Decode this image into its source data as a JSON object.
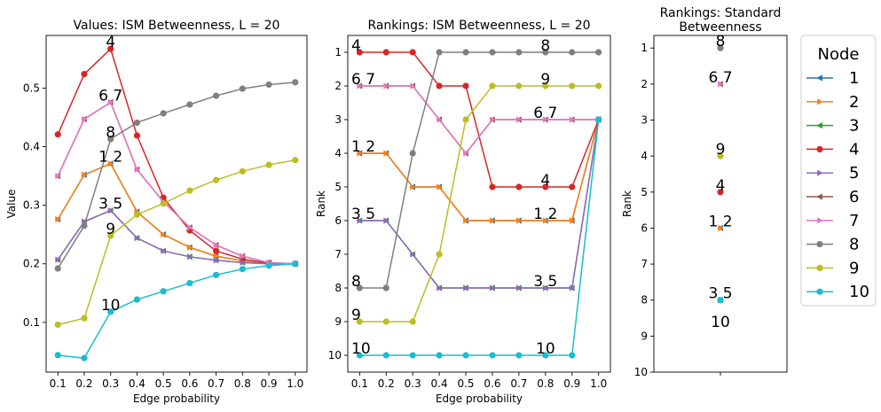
{
  "chart_data": [
    {
      "type": "line",
      "title": "Values: ISM Betweenness, L = 20",
      "xlabel": "Edge probability",
      "ylabel": "Value",
      "x": [
        "0.1",
        "0.2",
        "0.3",
        "0.4",
        "0.5",
        "0.6",
        "0.7",
        "0.8",
        "0.9",
        "1.0"
      ],
      "ylim": [
        0.015,
        0.59
      ],
      "yticks": [
        "0.1",
        "0.2",
        "0.3",
        "0.4",
        "0.5"
      ],
      "series": [
        {
          "name": "1",
          "values": [
            0.276,
            0.352,
            0.371,
            0.289,
            0.25,
            0.228,
            0.213,
            0.205,
            0.2,
            0.2
          ]
        },
        {
          "name": "2",
          "values": [
            0.276,
            0.352,
            0.371,
            0.289,
            0.25,
            0.228,
            0.213,
            0.205,
            0.2,
            0.2
          ]
        },
        {
          "name": "3",
          "values": [
            0.207,
            0.272,
            0.291,
            0.244,
            0.222,
            0.212,
            0.206,
            0.202,
            0.2,
            0.2
          ]
        },
        {
          "name": "4",
          "values": [
            0.421,
            0.524,
            0.567,
            0.419,
            0.313,
            0.257,
            0.222,
            0.208,
            0.201,
            0.2
          ]
        },
        {
          "name": "5",
          "values": [
            0.207,
            0.272,
            0.291,
            0.244,
            0.222,
            0.212,
            0.206,
            0.202,
            0.2,
            0.2
          ]
        },
        {
          "name": "6",
          "values": [
            0.35,
            0.447,
            0.476,
            0.361,
            0.306,
            0.262,
            0.232,
            0.213,
            0.202,
            0.2
          ]
        },
        {
          "name": "7",
          "values": [
            0.35,
            0.447,
            0.476,
            0.361,
            0.306,
            0.262,
            0.232,
            0.213,
            0.202,
            0.2
          ]
        },
        {
          "name": "8",
          "values": [
            0.192,
            0.265,
            0.413,
            0.441,
            0.457,
            0.472,
            0.487,
            0.499,
            0.506,
            0.51
          ]
        },
        {
          "name": "9",
          "values": [
            0.096,
            0.107,
            0.248,
            0.284,
            0.303,
            0.325,
            0.343,
            0.358,
            0.369,
            0.377
          ]
        },
        {
          "name": "10",
          "values": [
            0.044,
            0.039,
            0.118,
            0.139,
            0.153,
            0.167,
            0.181,
            0.191,
            0.197,
            0.2
          ]
        }
      ],
      "annotations": [
        {
          "text": "4",
          "x": "0.3",
          "y": 0.567
        },
        {
          "text": "6 7",
          "x": "0.3",
          "y": 0.476
        },
        {
          "text": "8",
          "x": "0.3",
          "y": 0.413
        },
        {
          "text": "1 2",
          "x": "0.3",
          "y": 0.371
        },
        {
          "text": "3 5",
          "x": "0.3",
          "y": 0.291
        },
        {
          "text": "9",
          "x": "0.3",
          "y": 0.248
        },
        {
          "text": "10",
          "x": "0.3",
          "y": 0.118
        }
      ]
    },
    {
      "type": "line",
      "title": "Rankings: ISM Betweenness, L = 20",
      "xlabel": "Edge probability",
      "ylabel": "Rank",
      "x": [
        "0.1",
        "0.2",
        "0.3",
        "0.4",
        "0.5",
        "0.6",
        "0.7",
        "0.8",
        "0.9",
        "1.0"
      ],
      "ylim": [
        10.5,
        0.5
      ],
      "yticks": [
        "1",
        "2",
        "3",
        "4",
        "5",
        "6",
        "7",
        "8",
        "9",
        "10"
      ],
      "series": [
        {
          "name": "1",
          "values": [
            4,
            4,
            5,
            5,
            6,
            6,
            6,
            6,
            6,
            3
          ]
        },
        {
          "name": "2",
          "values": [
            4,
            4,
            5,
            5,
            6,
            6,
            6,
            6,
            6,
            3
          ]
        },
        {
          "name": "3",
          "values": [
            6,
            6,
            7,
            8,
            8,
            8,
            8,
            8,
            8,
            3
          ]
        },
        {
          "name": "4",
          "values": [
            1,
            1,
            1,
            2,
            2,
            5,
            5,
            5,
            5,
            3
          ]
        },
        {
          "name": "5",
          "values": [
            6,
            6,
            7,
            8,
            8,
            8,
            8,
            8,
            8,
            3
          ]
        },
        {
          "name": "6",
          "values": [
            2,
            2,
            2,
            3,
            4,
            3,
            3,
            3,
            3,
            3
          ]
        },
        {
          "name": "7",
          "values": [
            2,
            2,
            2,
            3,
            4,
            3,
            3,
            3,
            3,
            3
          ]
        },
        {
          "name": "8",
          "values": [
            8,
            8,
            4,
            1,
            1,
            1,
            1,
            1,
            1,
            1
          ]
        },
        {
          "name": "9",
          "values": [
            9,
            9,
            9,
            7,
            3,
            2,
            2,
            2,
            2,
            2
          ]
        },
        {
          "name": "10",
          "values": [
            10,
            10,
            10,
            10,
            10,
            10,
            10,
            10,
            10,
            3
          ]
        }
      ],
      "annotations": [
        {
          "text": "4",
          "x": "0.1",
          "y": 1
        },
        {
          "text": "6 7",
          "x": "0.1",
          "y": 2
        },
        {
          "text": "1 2",
          "x": "0.1",
          "y": 4
        },
        {
          "text": "3 5",
          "x": "0.1",
          "y": 6
        },
        {
          "text": "8",
          "x": "0.1",
          "y": 8
        },
        {
          "text": "9",
          "x": "0.1",
          "y": 9
        },
        {
          "text": "10",
          "x": "0.1",
          "y": 10
        },
        {
          "text": "8",
          "x": "0.8",
          "y": 1
        },
        {
          "text": "9",
          "x": "0.8",
          "y": 2
        },
        {
          "text": "6 7",
          "x": "0.8",
          "y": 3
        },
        {
          "text": "4",
          "x": "0.8",
          "y": 5
        },
        {
          "text": "1 2",
          "x": "0.8",
          "y": 6
        },
        {
          "text": "3 5",
          "x": "0.8",
          "y": 8
        },
        {
          "text": "10",
          "x": "0.8",
          "y": 10
        }
      ]
    },
    {
      "type": "scatter",
      "title": "Rankings: Standard Betweenness",
      "title_lines": [
        "Rankings: Standard",
        "Betweenness"
      ],
      "ylabel": "Rank",
      "ylim": [
        10,
        0.65
      ],
      "yticks": [
        "1",
        "2",
        "3",
        "4",
        "5",
        "6",
        "7",
        "8",
        "9",
        "10"
      ],
      "points": [
        {
          "name": "1",
          "rank": 6
        },
        {
          "name": "2",
          "rank": 6
        },
        {
          "name": "3",
          "rank": 8
        },
        {
          "name": "4",
          "rank": 5
        },
        {
          "name": "5",
          "rank": 8
        },
        {
          "name": "6",
          "rank": 2
        },
        {
          "name": "7",
          "rank": 2
        },
        {
          "name": "8",
          "rank": 1
        },
        {
          "name": "9",
          "rank": 4
        },
        {
          "name": "10",
          "rank": 8
        }
      ],
      "annotations": [
        {
          "text": "8",
          "y": 1
        },
        {
          "text": "6 7",
          "y": 2
        },
        {
          "text": "9",
          "y": 4
        },
        {
          "text": "4",
          "y": 5
        },
        {
          "text": "1 2",
          "y": 6
        },
        {
          "text": "3 5",
          "y": 8
        },
        {
          "text": "10",
          "y": 8.4
        }
      ]
    }
  ],
  "legend": {
    "title": "Node",
    "placement": "right",
    "entries": [
      {
        "label": "1",
        "color": "#1f77b4",
        "marker": "triangle-left"
      },
      {
        "label": "2",
        "color": "#ff7f0e",
        "marker": "triangle-right"
      },
      {
        "label": "3",
        "color": "#2ca02c",
        "marker": "triangle-left"
      },
      {
        "label": "4",
        "color": "#d62728",
        "marker": "circle"
      },
      {
        "label": "5",
        "color": "#9467bd",
        "marker": "triangle-right"
      },
      {
        "label": "6",
        "color": "#8c564b",
        "marker": "triangle-left"
      },
      {
        "label": "7",
        "color": "#e377c2",
        "marker": "triangle-right"
      },
      {
        "label": "8",
        "color": "#7f7f7f",
        "marker": "circle"
      },
      {
        "label": "9",
        "color": "#bcbd22",
        "marker": "circle"
      },
      {
        "label": "10",
        "color": "#17becf",
        "marker": "circle"
      }
    ]
  }
}
